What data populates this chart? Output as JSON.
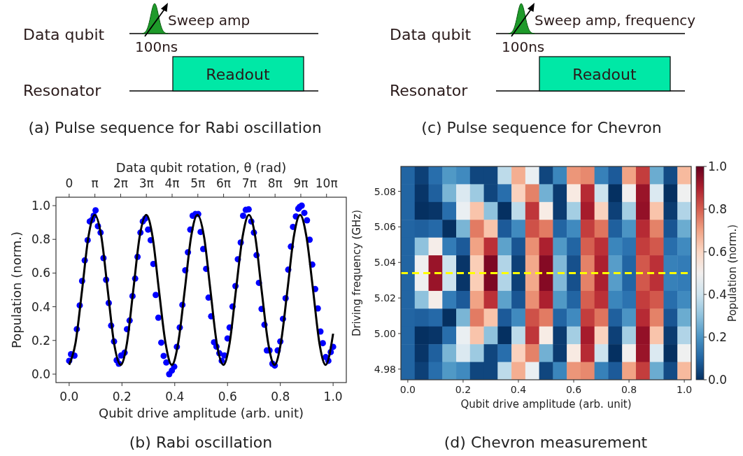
{
  "chart_data": [
    {
      "type": "other",
      "title": "(a) Pulse sequence for Rabi oscillation",
      "annotations": [
        "Data qubit",
        "Resonator",
        "Sweep amp",
        "100ns",
        "Readout"
      ]
    },
    {
      "type": "other",
      "title": "(c) Pulse sequence for Chevron",
      "annotations": [
        "Data qubit",
        "Resonator",
        "Sweep amp, frequency",
        "100ns",
        "Readout"
      ]
    },
    {
      "type": "scatter",
      "title": "(b) Rabi oscillation",
      "xlabel": "Qubit drive amplitude (arb. unit)",
      "ylabel": "Population (norm.)",
      "x2label": "Data qubit rotation, θ (rad)",
      "xlim": [
        -0.05,
        1.05
      ],
      "xticks": [
        {
          "value": 0,
          "label": "0.0"
        },
        {
          "value": 0.2,
          "label": "0.2"
        },
        {
          "value": 0.4,
          "label": "0.4"
        },
        {
          "value": 0.6,
          "label": "0.6"
        },
        {
          "value": 0.8,
          "label": "0.8"
        },
        {
          "value": 1,
          "label": "1.0"
        }
      ],
      "ylim": [
        -0.05,
        1.05
      ],
      "yticks": [
        {
          "value": 0,
          "label": "0.0"
        },
        {
          "value": 0.2,
          "label": "0.2"
        },
        {
          "value": 0.4,
          "label": "0.4"
        },
        {
          "value": 0.6,
          "label": "0.6"
        },
        {
          "value": 0.8,
          "label": "0.8"
        },
        {
          "value": 1,
          "label": "1.0"
        }
      ],
      "x2lim": [
        -1.61,
        33.83
      ],
      "x2ticks": [
        {
          "value": 0,
          "label": "0"
        },
        {
          "value": 3.1416,
          "label": "π"
        },
        {
          "value": 6.2832,
          "label": "2π"
        },
        {
          "value": 9.4248,
          "label": "3π"
        },
        {
          "value": 12.566,
          "label": "4π"
        },
        {
          "value": 15.708,
          "label": "5π"
        },
        {
          "value": 18.85,
          "label": "6π"
        },
        {
          "value": 21.991,
          "label": "7π"
        },
        {
          "value": 25.133,
          "label": "8π"
        },
        {
          "value": 28.274,
          "label": "9π"
        },
        {
          "value": 31.416,
          "label": "10π"
        }
      ],
      "series": [
        {
          "type": "scatter",
          "color": "#0000ff",
          "marker": "circle",
          "x": [
            0.0,
            0.007,
            0.02,
            0.029,
            0.04,
            0.049,
            0.059,
            0.07,
            0.078,
            0.087,
            0.093,
            0.1,
            0.109,
            0.119,
            0.13,
            0.14,
            0.15,
            0.159,
            0.17,
            0.18,
            0.188,
            0.197,
            0.21,
            0.219,
            0.229,
            0.24,
            0.25,
            0.259,
            0.27,
            0.279,
            0.288,
            0.299,
            0.309,
            0.319,
            0.328,
            0.338,
            0.349,
            0.358,
            0.368,
            0.379,
            0.389,
            0.398,
            0.408,
            0.419,
            0.429,
            0.44,
            0.45,
            0.459,
            0.468,
            0.478,
            0.489,
            0.498,
            0.508,
            0.519,
            0.528,
            0.538,
            0.549,
            0.558,
            0.569,
            0.578,
            0.588,
            0.6,
            0.608,
            0.619,
            0.63,
            0.639,
            0.65,
            0.659,
            0.669,
            0.68,
            0.69,
            0.7,
            0.71,
            0.719,
            0.729,
            0.74,
            0.749,
            0.759,
            0.77,
            0.779,
            0.79,
            0.8,
            0.81,
            0.82,
            0.83,
            0.84,
            0.848,
            0.859,
            0.868,
            0.873,
            0.881,
            0.891,
            0.901,
            0.911,
            0.921,
            0.932,
            0.942,
            0.952,
            0.961,
            0.972,
            0.982,
            0.991,
            1.0
          ],
          "values": [
            0.079,
            0.118,
            0.11,
            0.267,
            0.408,
            0.553,
            0.675,
            0.795,
            0.906,
            0.916,
            0.94,
            0.972,
            0.878,
            0.84,
            0.689,
            0.56,
            0.422,
            0.288,
            0.194,
            0.083,
            0.062,
            0.111,
            0.127,
            0.267,
            0.318,
            0.463,
            0.567,
            0.696,
            0.84,
            0.906,
            0.923,
            0.858,
            0.795,
            0.654,
            0.47,
            0.335,
            0.187,
            0.108,
            0.069,
            0.0,
            0.021,
            0.044,
            0.162,
            0.277,
            0.411,
            0.616,
            0.723,
            0.858,
            0.94,
            0.95,
            0.95,
            0.844,
            0.743,
            0.625,
            0.454,
            0.343,
            0.189,
            0.163,
            0.124,
            0.079,
            0.111,
            0.212,
            0.277,
            0.401,
            0.523,
            0.682,
            0.781,
            0.94,
            0.975,
            0.978,
            0.906,
            0.84,
            0.706,
            0.542,
            0.387,
            0.293,
            0.141,
            0.141,
            0.062,
            0.051,
            0.141,
            0.194,
            0.328,
            0.45,
            0.62,
            0.757,
            0.874,
            0.936,
            0.982,
            0.992,
            1.0,
            0.957,
            0.913,
            0.798,
            0.65,
            0.505,
            0.39,
            0.253,
            0.184,
            0.101,
            0.079,
            0.131,
            0.162
          ]
        },
        {
          "type": "line",
          "color": "#000000",
          "line_style": "solid",
          "x": [
            0,
            0.024,
            0.049,
            0.073,
            0.097,
            0.122,
            0.146,
            0.17,
            0.195,
            0.219,
            0.243,
            0.267,
            0.292,
            0.316,
            0.34,
            0.365,
            0.389,
            0.413,
            0.438,
            0.462,
            0.486,
            0.511,
            0.535,
            0.559,
            0.584,
            0.608,
            0.632,
            0.657,
            0.681,
            0.705,
            0.729,
            0.754,
            0.778,
            0.802,
            0.827,
            0.851,
            0.875,
            0.899,
            0.924,
            0.948,
            0.972,
            1.0
          ],
          "values": [
            0.055,
            0.185,
            0.5,
            0.815,
            0.945,
            0.815,
            0.5,
            0.185,
            0.055,
            0.185,
            0.5,
            0.815,
            0.945,
            0.815,
            0.5,
            0.185,
            0.055,
            0.185,
            0.5,
            0.815,
            0.945,
            0.815,
            0.5,
            0.185,
            0.055,
            0.185,
            0.5,
            0.815,
            0.945,
            0.815,
            0.5,
            0.185,
            0.055,
            0.185,
            0.5,
            0.815,
            0.945,
            0.815,
            0.5,
            0.185,
            0.055,
            0.24
          ]
        }
      ]
    },
    {
      "type": "heatmap",
      "title": "(d) Chevron measurement",
      "xlabel": "Qubit drive amplitude (arb. unit)",
      "ylabel": "Driving frequency (GHz)",
      "clabel": "Population (norm.)",
      "xlim": [
        -0.025,
        1.025
      ],
      "xticks": [
        {
          "value": 0,
          "label": "0.0"
        },
        {
          "value": 0.2,
          "label": "0.2"
        },
        {
          "value": 0.4,
          "label": "0.4"
        },
        {
          "value": 0.6,
          "label": "0.6"
        },
        {
          "value": 0.8,
          "label": "0.8"
        },
        {
          "value": 1,
          "label": "1.0"
        }
      ],
      "ylim": [
        4.974,
        5.094
      ],
      "yticks": [
        {
          "value": 4.98,
          "label": "4.98"
        },
        {
          "value": 5.0,
          "label": "5.00"
        },
        {
          "value": 5.02,
          "label": "5.02"
        },
        {
          "value": 5.04,
          "label": "5.04"
        },
        {
          "value": 5.06,
          "label": "5.06"
        },
        {
          "value": 5.08,
          "label": "5.08"
        }
      ],
      "clim": [
        0,
        1
      ],
      "cticks": [
        {
          "value": 0,
          "label": "0.0"
        },
        {
          "value": 0.2,
          "label": "0.2"
        },
        {
          "value": 0.4,
          "label": "0.4"
        },
        {
          "value": 0.6,
          "label": "0.6"
        },
        {
          "value": 0.8,
          "label": "0.8"
        },
        {
          "value": 1,
          "label": "1.0"
        }
      ],
      "x": [
        0,
        0.05,
        0.1,
        0.15,
        0.2,
        0.25,
        0.3,
        0.35,
        0.4,
        0.45,
        0.5,
        0.55,
        0.6,
        0.65,
        0.7,
        0.75,
        0.8,
        0.85,
        0.9,
        0.95,
        1.0
      ],
      "y": [
        5.089,
        5.079,
        5.069,
        5.059,
        5.049,
        5.039,
        5.029,
        5.019,
        5.009,
        4.999,
        4.989,
        4.979
      ],
      "cells": [
        [
          0.1,
          0.03,
          0.12,
          0.21,
          0.18,
          0.04,
          0.04,
          0.37,
          0.68,
          0.47,
          0.04,
          0.17,
          0.72,
          0.74,
          0.16,
          0.08,
          0.7,
          0.85,
          0.25,
          0.05,
          0.66
        ],
        [
          0.1,
          0.01,
          0.09,
          0.27,
          0.43,
          0.32,
          0.04,
          0.12,
          0.61,
          0.75,
          0.26,
          0.02,
          0.54,
          0.88,
          0.4,
          0.0,
          0.5,
          0.93,
          0.43,
          0.0,
          0.49
        ],
        [
          0.1,
          0.0,
          0.01,
          0.12,
          0.47,
          0.64,
          0.3,
          0.0,
          0.37,
          0.86,
          0.53,
          0.02,
          0.33,
          0.91,
          0.61,
          0.03,
          0.33,
          0.94,
          0.64,
          0.02,
          0.35
        ],
        [
          0.1,
          0.09,
          0.11,
          0.0,
          0.27,
          0.76,
          0.64,
          0.08,
          0.18,
          0.82,
          0.76,
          0.1,
          0.18,
          0.85,
          0.77,
          0.09,
          0.2,
          0.88,
          0.75,
          0.07,
          0.25
        ],
        [
          0.1,
          0.3,
          0.52,
          0.15,
          0.08,
          0.7,
          0.87,
          0.23,
          0.07,
          0.73,
          0.9,
          0.21,
          0.1,
          0.8,
          0.87,
          0.17,
          0.13,
          0.85,
          0.81,
          0.12,
          0.18
        ],
        [
          0.1,
          0.49,
          0.93,
          0.4,
          0.01,
          0.62,
          0.97,
          0.35,
          0.03,
          0.69,
          0.96,
          0.28,
          0.06,
          0.75,
          0.9,
          0.22,
          0.1,
          0.81,
          0.87,
          0.16,
          0.15
        ],
        [
          0.1,
          0.49,
          0.93,
          0.4,
          0.01,
          0.62,
          0.97,
          0.35,
          0.03,
          0.69,
          0.96,
          0.28,
          0.06,
          0.75,
          0.9,
          0.22,
          0.1,
          0.81,
          0.87,
          0.16,
          0.15
        ],
        [
          0.1,
          0.3,
          0.52,
          0.15,
          0.08,
          0.7,
          0.87,
          0.23,
          0.07,
          0.73,
          0.9,
          0.21,
          0.1,
          0.8,
          0.87,
          0.17,
          0.13,
          0.85,
          0.81,
          0.12,
          0.18
        ],
        [
          0.1,
          0.09,
          0.11,
          0.0,
          0.27,
          0.76,
          0.64,
          0.08,
          0.18,
          0.82,
          0.76,
          0.1,
          0.18,
          0.85,
          0.77,
          0.09,
          0.2,
          0.88,
          0.75,
          0.07,
          0.25
        ],
        [
          0.1,
          0.0,
          0.01,
          0.12,
          0.47,
          0.64,
          0.3,
          0.0,
          0.37,
          0.86,
          0.53,
          0.02,
          0.33,
          0.91,
          0.61,
          0.03,
          0.33,
          0.94,
          0.64,
          0.02,
          0.35
        ],
        [
          0.1,
          0.01,
          0.09,
          0.27,
          0.43,
          0.32,
          0.04,
          0.12,
          0.61,
          0.75,
          0.26,
          0.02,
          0.54,
          0.88,
          0.4,
          0.0,
          0.5,
          0.93,
          0.43,
          0.0,
          0.49
        ],
        [
          0.1,
          0.03,
          0.12,
          0.21,
          0.18,
          0.04,
          0.04,
          0.37,
          0.68,
          0.47,
          0.04,
          0.17,
          0.72,
          0.74,
          0.16,
          0.08,
          0.7,
          0.85,
          0.25,
          0.05,
          0.66
        ]
      ],
      "ref_lines": [
        {
          "axis": "y",
          "value": 5.034,
          "color": "#ffff00",
          "line_style": "dashed"
        }
      ]
    }
  ]
}
